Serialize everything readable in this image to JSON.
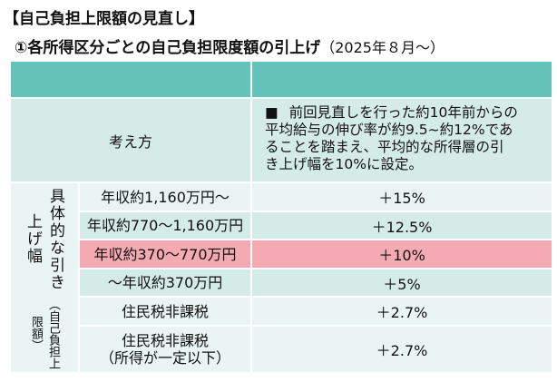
{
  "header": {
    "title": "【自己負担上限額の見直し】",
    "subtitle": "①各所得区分ごとの自己負担限度額の引上げ",
    "subtitle_note": "（2025年８月～）"
  },
  "table": {
    "concept": {
      "label": "考え方",
      "bullet": "■",
      "lines": [
        "前回見直しを行った約10年前からの",
        "平均給与の伸び率が約9.5~約12%であ",
        "ることを踏まえ、平均的な所得層の引",
        "き上げ幅を10%に設定。"
      ]
    },
    "side_label": "具体的な引き上げ幅",
    "side_note": "（自己負担上限額）",
    "rows": [
      {
        "label": [
          "年収約1,160万円～"
        ],
        "value": "＋15%"
      },
      {
        "label": [
          "年収約770～1,160万円"
        ],
        "value": "＋12.5%"
      },
      {
        "label": [
          "年収約370～770万円"
        ],
        "value": "＋10%"
      },
      {
        "label": [
          "～年収約370万円"
        ],
        "value": "＋5%"
      },
      {
        "label": [
          "住民税非課税"
        ],
        "value": "＋2.7%"
      },
      {
        "label": [
          "住民税非課税",
          "（所得が一定以下）"
        ],
        "value": "＋2.7%"
      }
    ]
  }
}
